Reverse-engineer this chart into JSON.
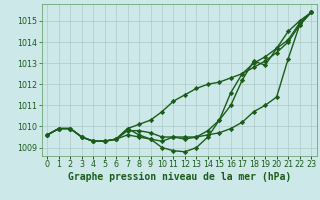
{
  "title": "Graphe pression niveau de la mer (hPa)",
  "bg_color": "#cce8e8",
  "grid_color": "#b0c8c8",
  "line_color": "#1a5c1a",
  "hours": [
    0,
    1,
    2,
    3,
    4,
    5,
    6,
    7,
    8,
    9,
    10,
    11,
    12,
    13,
    14,
    15,
    16,
    17,
    18,
    19,
    20,
    21,
    22,
    23
  ],
  "series": [
    [
      1009.6,
      1009.9,
      1009.9,
      1009.5,
      1009.3,
      1009.3,
      1009.4,
      1009.8,
      1009.8,
      1009.7,
      1009.5,
      1009.5,
      1009.5,
      1009.5,
      1009.6,
      1009.7,
      1009.9,
      1010.2,
      1010.7,
      1011.0,
      1011.4,
      1013.2,
      1014.8,
      1015.4
    ],
    [
      1009.6,
      1009.9,
      1009.9,
      1009.5,
      1009.3,
      1009.3,
      1009.4,
      1009.9,
      1010.1,
      1010.3,
      1010.7,
      1011.2,
      1011.5,
      1011.8,
      1012.0,
      1012.1,
      1012.3,
      1012.5,
      1012.8,
      1013.1,
      1013.5,
      1014.0,
      1014.8,
      1015.4
    ],
    [
      1009.6,
      1009.9,
      1009.9,
      1009.5,
      1009.3,
      1009.3,
      1009.4,
      1009.6,
      1009.5,
      1009.4,
      1009.0,
      1008.85,
      1008.8,
      1009.0,
      1009.5,
      1010.3,
      1011.0,
      1012.2,
      1013.1,
      1012.9,
      1013.7,
      1014.5,
      1015.0,
      1015.4
    ],
    [
      1009.6,
      1009.9,
      1009.9,
      1009.5,
      1009.3,
      1009.3,
      1009.4,
      1009.9,
      1009.6,
      1009.4,
      1009.3,
      1009.5,
      1009.4,
      1009.5,
      1009.8,
      1010.3,
      1011.6,
      1012.5,
      1013.0,
      1013.3,
      1013.7,
      1014.1,
      1014.9,
      1015.4
    ]
  ],
  "yticks": [
    1009,
    1010,
    1011,
    1012,
    1013,
    1014,
    1015
  ],
  "ylim": [
    1008.6,
    1015.8
  ],
  "xlim": [
    -0.5,
    23.5
  ],
  "marker": "D",
  "marker_size": 2.2,
  "line_width": 1.0,
  "title_fontsize": 7.0,
  "tick_fontsize": 5.8,
  "title_color": "#1a5c1a",
  "tick_color": "#1a5c1a",
  "spine_color": "#5a9a5a"
}
